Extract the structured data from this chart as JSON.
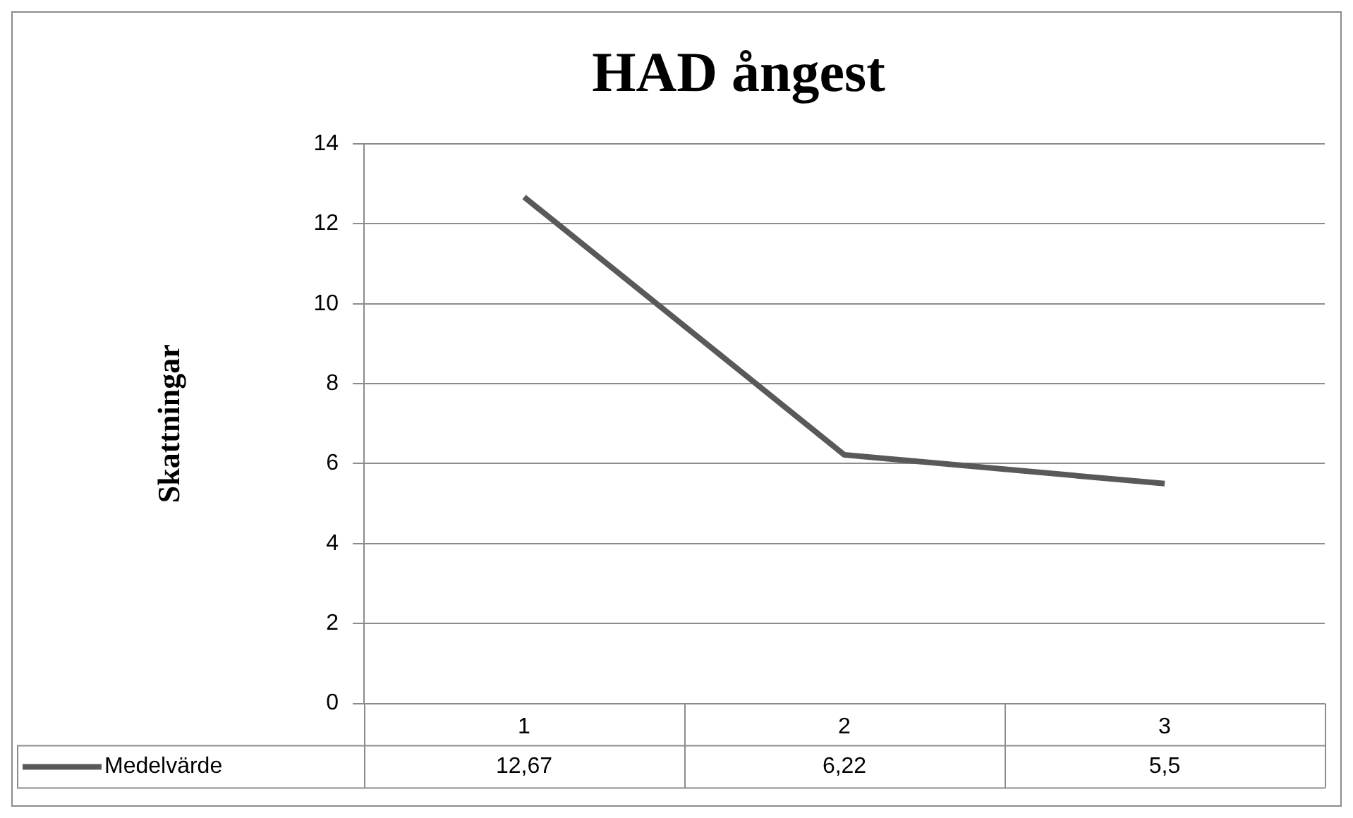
{
  "chart_data": {
    "type": "line",
    "title": "HAD ångest",
    "ylabel": "Skattningar",
    "categories": [
      "1",
      "2",
      "3"
    ],
    "series": [
      {
        "name": "Medelvärde",
        "color": "#595959",
        "values": [
          12.67,
          6.22,
          5.5
        ],
        "value_labels": [
          "12,67",
          "6,22",
          "5,5"
        ]
      }
    ],
    "ylim": [
      0,
      14
    ],
    "yticks": [
      0,
      2,
      4,
      6,
      8,
      10,
      12,
      14
    ],
    "grid": "y",
    "legend": "bottom",
    "marker": "none"
  }
}
